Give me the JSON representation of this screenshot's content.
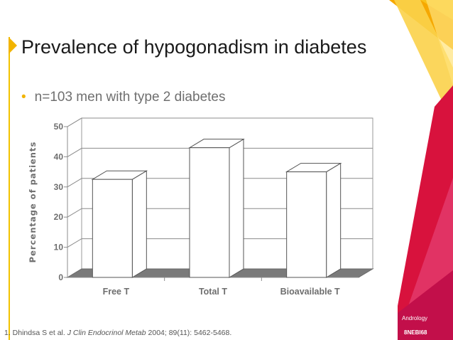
{
  "slide": {
    "title": "Prevalence of hypogonadism in diabetes",
    "bullet": "n=103 men with type 2 diabetes",
    "footnote": {
      "prefix": "1. Dhindsa S et al. ",
      "journal": "J Clin Endocrinol Metab",
      "suffix": " 2004; 89(11): 5462-5468."
    },
    "brand": {
      "label": "Andrology",
      "code": "8NEBI68"
    }
  },
  "colors": {
    "accent": "#f2b400",
    "brand_red": "#d8123d",
    "bar_fill": "#ffffff",
    "floor": "#7a7a7a"
  },
  "chart_data": {
    "type": "bar",
    "categories": [
      "Free T",
      "Total T",
      "Bioavailable T"
    ],
    "values": [
      32.5,
      43,
      35
    ],
    "ylabel": "Percentage of patients",
    "ylim": [
      0,
      50
    ],
    "yticks": [
      "0",
      "10",
      "20",
      "30",
      "40",
      "50"
    ],
    "grid": true,
    "style": "3d"
  }
}
